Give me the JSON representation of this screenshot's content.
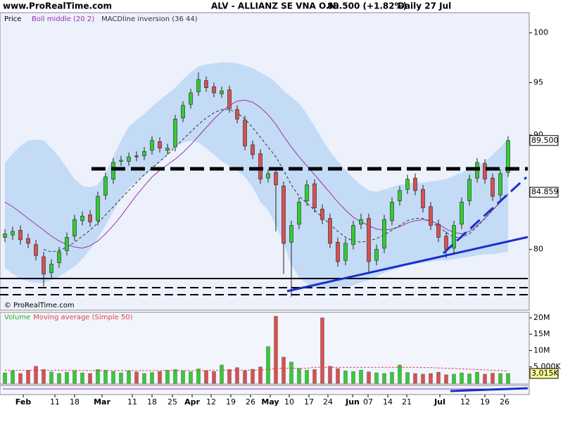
{
  "header": {
    "site": "www.ProRealTime.com",
    "name": "ALV - ALLIANZ SE VNA O.N.",
    "quote": "89.500 (+1.82%)",
    "period": "Daily  27 Jul"
  },
  "watermark": "© ProRealTime.com",
  "x_axis": [
    "Feb",
    "11",
    "18",
    "Mar",
    "11",
    "18",
    "25",
    "Apr",
    "12",
    "19",
    "26",
    "May",
    "10",
    "17",
    "24",
    "Jun",
    "07",
    "14",
    "21",
    "Jul",
    "12",
    "19",
    "26"
  ],
  "chart_data": [
    {
      "type": "candlestick",
      "name": "Price",
      "up_color": "#33cc33",
      "down_color": "#d95050",
      "open": [
        81.0,
        81.2,
        81.6,
        80.9,
        80.4,
        79.4,
        78.1,
        78.9,
        79.9,
        81.1,
        82.4,
        82.9,
        82.4,
        84.6,
        86.0,
        87.6,
        87.6,
        88.1,
        88.1,
        88.6,
        89.4,
        88.6,
        88.9,
        91.6,
        92.9,
        94.1,
        95.2,
        94.6,
        93.9,
        94.3,
        92.4,
        91.4,
        89.1,
        88.3,
        86.1,
        86.6,
        85.4,
        80.6,
        82.1,
        84.1,
        85.6,
        83.4,
        82.6,
        80.6,
        79.1,
        80.4,
        82.1,
        82.6,
        79.1,
        80.1,
        82.4,
        84.1,
        85.1,
        86.1,
        85.1,
        83.6,
        82.1,
        81.1,
        80.1,
        82.1,
        84.1,
        86.1,
        87.4,
        86.1,
        84.6,
        86.6
      ],
      "high": [
        81.7,
        81.9,
        82.0,
        81.3,
        80.8,
        79.8,
        79.2,
        80.2,
        81.4,
        82.9,
        83.2,
        83.3,
        84.9,
        86.6,
        87.9,
        88.1,
        88.4,
        88.5,
        88.9,
        89.9,
        89.8,
        89.2,
        91.9,
        93.2,
        94.4,
        96.0,
        95.6,
        95.0,
        94.6,
        94.7,
        92.8,
        91.8,
        89.5,
        88.7,
        86.9,
        87.0,
        85.8,
        82.4,
        84.4,
        85.9,
        86.0,
        83.8,
        83.0,
        81.0,
        80.9,
        82.4,
        83.0,
        83.0,
        80.4,
        82.9,
        84.4,
        85.4,
        86.4,
        86.5,
        85.5,
        84.0,
        82.5,
        81.5,
        82.4,
        84.4,
        86.4,
        87.9,
        87.8,
        86.5,
        86.9,
        89.9
      ],
      "low": [
        80.6,
        80.8,
        80.4,
        80.1,
        79.1,
        77.0,
        77.7,
        78.5,
        79.5,
        80.7,
        82.0,
        81.9,
        82.0,
        84.2,
        85.6,
        87.2,
        87.2,
        87.6,
        87.7,
        88.2,
        88.4,
        88.2,
        88.5,
        91.2,
        92.5,
        93.7,
        94.1,
        93.6,
        93.5,
        92.1,
        91.1,
        88.6,
        87.8,
        85.6,
        85.7,
        81.5,
        78.0,
        76.2,
        81.7,
        83.7,
        83.1,
        82.1,
        80.1,
        78.6,
        78.7,
        80.0,
        81.7,
        78.0,
        78.7,
        79.7,
        82.0,
        83.7,
        84.7,
        84.6,
        83.1,
        81.6,
        80.6,
        79.3,
        79.7,
        81.7,
        83.7,
        85.7,
        85.6,
        84.1,
        84.2,
        86.2
      ],
      "close": [
        81.3,
        81.5,
        80.8,
        80.5,
        79.5,
        78.0,
        78.8,
        79.8,
        81.0,
        82.5,
        82.8,
        82.3,
        84.5,
        86.2,
        87.5,
        87.7,
        88.0,
        88.0,
        88.5,
        89.5,
        88.8,
        88.8,
        91.5,
        92.8,
        94.0,
        95.3,
        94.5,
        94.0,
        94.2,
        92.5,
        91.5,
        89.0,
        88.2,
        86.0,
        86.5,
        85.5,
        80.5,
        82.0,
        84.0,
        85.5,
        83.5,
        82.5,
        80.5,
        79.0,
        80.5,
        82.0,
        82.5,
        79.0,
        80.0,
        82.5,
        84.0,
        85.0,
        86.0,
        85.0,
        83.5,
        82.0,
        81.0,
        80.0,
        82.0,
        84.0,
        86.0,
        87.5,
        86.0,
        84.5,
        86.5,
        89.5
      ],
      "bands": {
        "color": "#c4dbf6",
        "upper": [
          87.5,
          88.3,
          89.0,
          89.5,
          89.6,
          89.5,
          88.8,
          88.0,
          87.0,
          86.0,
          85.4,
          85.3,
          85.5,
          86.5,
          88.0,
          89.5,
          90.8,
          91.4,
          92.0,
          92.7,
          93.3,
          93.9,
          94.5,
          95.3,
          96.0,
          96.6,
          96.8,
          96.9,
          97.0,
          97.0,
          96.9,
          96.7,
          96.4,
          96.0,
          95.6,
          95.0,
          94.2,
          93.6,
          93.0,
          92.0,
          90.8,
          89.6,
          88.5,
          87.6,
          86.8,
          86.1,
          85.5,
          85.0,
          84.9,
          85.1,
          85.3,
          85.5,
          85.6,
          85.7,
          85.7,
          85.8,
          85.9,
          86.0,
          86.3,
          86.6,
          86.9,
          87.2,
          87.6,
          88.2,
          88.9,
          89.6
        ],
        "lower": [
          78.5,
          78.0,
          77.6,
          77.4,
          77.3,
          77.3,
          77.5,
          77.8,
          78.2,
          78.6,
          79.2,
          80.0,
          80.9,
          82.0,
          83.2,
          84.3,
          85.2,
          85.8,
          86.3,
          86.9,
          87.5,
          88.2,
          88.9,
          89.3,
          89.5,
          89.3,
          88.8,
          88.2,
          87.6,
          87.2,
          86.8,
          86.2,
          85.3,
          84.0,
          83.3,
          82.0,
          80.5,
          78.7,
          77.7,
          77.2,
          76.9,
          76.8,
          76.8,
          76.9,
          77.0,
          77.1,
          77.3,
          77.5,
          77.8,
          78.1,
          78.3,
          78.5,
          78.7,
          78.8,
          78.9,
          79.0,
          79.1,
          79.1,
          79.2,
          79.3,
          79.4,
          79.5,
          79.6,
          79.6,
          79.7,
          79.8
        ]
      },
      "series": [
        {
          "name": "Boll middle (20 2)",
          "color": "#9933aa",
          "dash": false,
          "values": [
            84.0,
            83.6,
            83.1,
            82.6,
            82.1,
            81.6,
            81.1,
            80.7,
            80.4,
            80.2,
            80.1,
            80.3,
            80.7,
            81.3,
            82.0,
            82.8,
            83.7,
            84.6,
            85.4,
            86.2,
            86.8,
            87.3,
            87.8,
            88.4,
            89.1,
            89.9,
            90.7,
            91.5,
            92.2,
            92.8,
            93.2,
            93.3,
            93.1,
            92.6,
            91.9,
            91.0,
            89.9,
            88.9,
            88.0,
            87.2,
            86.4,
            85.6,
            84.8,
            84.0,
            83.3,
            82.7,
            82.3,
            82.0,
            81.7,
            81.6,
            81.7,
            81.9,
            82.2,
            82.4,
            82.5,
            82.4,
            82.1,
            81.7,
            81.4,
            81.3,
            81.5,
            82.0,
            82.6,
            83.3,
            84.0,
            84.7
          ]
        },
        {
          "name": "MACDline inversion (36 44)",
          "color": "#333333",
          "dash": true,
          "values": [
            null,
            null,
            null,
            null,
            null,
            80.0,
            79.8,
            79.9,
            80.2,
            80.6,
            81.1,
            81.6,
            82.2,
            82.9,
            83.6,
            84.3,
            85.0,
            85.7,
            86.4,
            87.0,
            87.6,
            88.2,
            88.9,
            89.6,
            90.3,
            91.0,
            91.6,
            92.1,
            92.4,
            92.4,
            92.1,
            91.5,
            90.7,
            89.8,
            88.9,
            88.0,
            86.8,
            85.5,
            84.5,
            83.9,
            83.3,
            82.7,
            82.1,
            81.5,
            81.0,
            80.7,
            80.6,
            80.7,
            80.9,
            81.2,
            81.6,
            82.0,
            82.4,
            82.6,
            82.6,
            82.3,
            81.9,
            81.4,
            81.0,
            81.0,
            81.3,
            81.9,
            82.6,
            83.3,
            84.0,
            84.7
          ]
        }
      ],
      "log_scale": true,
      "ylim": [
        75.2,
        102.1
      ],
      "yticks": [
        80,
        90,
        95,
        100
      ],
      "price_labels": [
        {
          "value": 84.859,
          "label": "84.859"
        },
        {
          "value": 89.5,
          "label": "89.500"
        }
      ]
    },
    {
      "type": "bar",
      "ylim": [
        0,
        21700000
      ],
      "yticks": [
        {
          "value": 5000000,
          "label": "5,000K"
        },
        {
          "value": 10000000,
          "label": "10M"
        },
        {
          "value": 15000000,
          "label": "15M"
        },
        {
          "value": 20000000,
          "label": "20M"
        }
      ],
      "series": [
        {
          "name": "Volume",
          "color": "#33aa33",
          "values": [
            3200000,
            3800000,
            3000000,
            4000000,
            5200000,
            4200000,
            3500000,
            3000000,
            3400000,
            3800000,
            3200000,
            3000000,
            4200000,
            4000000,
            3600000,
            3200000,
            3800000,
            3500000,
            3000000,
            3300000,
            3600000,
            4000000,
            4200000,
            3800000,
            3500000,
            4400000,
            3900000,
            3600000,
            5600000,
            4200000,
            4800000,
            3800000,
            4300000,
            5000000,
            11200000,
            20500000,
            8000000,
            6500000,
            4500000,
            4000000,
            4200000,
            20000000,
            5200000,
            4500000,
            3800000,
            3600000,
            4000000,
            3500000,
            3200000,
            3000000,
            3400000,
            5600000,
            3300000,
            3000000,
            2800000,
            3000000,
            3400000,
            2600000,
            2800000,
            3200000,
            2900000,
            3400000,
            2800000,
            3100000,
            3000000,
            3015000
          ],
          "last_label": {
            "value": 3015000,
            "label": "3,015K"
          }
        },
        {
          "name": "Moving average (Simple 50)",
          "color": "#dd4444",
          "values": [
            4000000,
            4000000,
            4000000,
            4000000,
            4000000,
            4000000,
            4000000,
            4000000,
            4000000,
            4000000,
            3900000,
            3900000,
            3900000,
            3900000,
            3900000,
            3900000,
            3900000,
            3900000,
            3900000,
            3900000,
            3900000,
            3900000,
            3900000,
            3900000,
            3900000,
            3900000,
            3900000,
            4000000,
            4000000,
            4000000,
            4000000,
            4000000,
            4000000,
            4000000,
            4200000,
            4500000,
            4600000,
            4600000,
            4600000,
            4600000,
            4900000,
            4900000,
            4900000,
            4900000,
            4900000,
            4900000,
            4900000,
            4900000,
            4900000,
            4900000,
            4900000,
            4900000,
            4900000,
            4900000,
            4800000,
            4800000,
            4700000,
            4600000,
            4500000,
            4400000,
            4300000,
            4200000,
            4100000,
            4000000,
            3900000,
            3800000
          ]
        }
      ]
    }
  ]
}
